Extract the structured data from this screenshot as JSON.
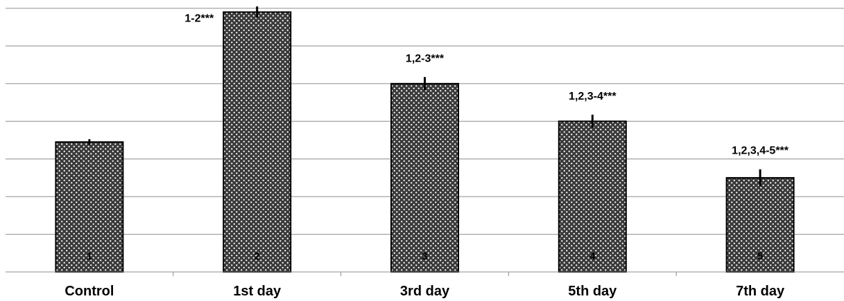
{
  "chart_data": {
    "type": "bar",
    "categories": [
      "Control",
      "1st day",
      "3rd day",
      "5th day",
      "7th day"
    ],
    "values": [
      6.9,
      13.8,
      10.0,
      8.0,
      5.0
    ],
    "errors": [
      0.15,
      0.3,
      0.35,
      0.35,
      0.45
    ],
    "bar_numbers": [
      "1",
      "2",
      "3",
      "4",
      "5"
    ],
    "annotations": [
      "",
      "1-2***",
      "1,2-3***",
      "1,2,3-4***",
      "1,2,3,4-5***"
    ],
    "ylim": [
      0,
      14
    ],
    "ytick_step": 2,
    "grid": true,
    "show_y_axis_labels": false,
    "title": "",
    "xlabel": "",
    "ylabel": ""
  }
}
